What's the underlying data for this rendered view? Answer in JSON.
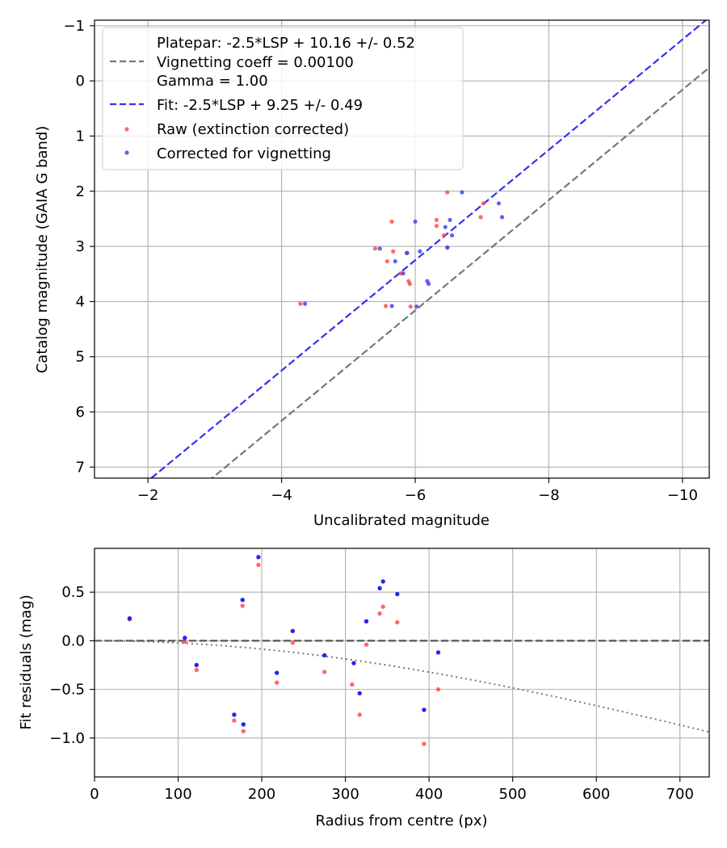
{
  "chart_data": [
    {
      "type": "scatter",
      "xlabel": "Uncalibrated magnitude",
      "ylabel": "Catalog magnitude (GAIA G band)",
      "xlim": [
        -1.2,
        -10.4
      ],
      "ylim": [
        7.2,
        -1.1
      ],
      "x_inverted": true,
      "y_inverted": true,
      "x_ticks": [
        -2,
        -4,
        -6,
        -8,
        -10
      ],
      "x_tick_labels": [
        "−2",
        "−4",
        "−6",
        "−8",
        "−10"
      ],
      "y_ticks": [
        -1,
        0,
        1,
        2,
        3,
        4,
        5,
        6,
        7
      ],
      "y_tick_labels": [
        "−1",
        "0",
        "1",
        "2",
        "3",
        "4",
        "5",
        "6",
        "7"
      ],
      "grid": true,
      "legend_position": "top-left",
      "legend": {
        "platepar": [
          "Platepar: -2.5*LSP + 10.16 +/- 0.52",
          "Vignetting coeff = 0.00100",
          "Gamma = 1.00"
        ],
        "fit": "Fit: -2.5*LSP + 9.25 +/- 0.49",
        "raw": "Raw (extinction corrected)",
        "corrected": "Corrected for vignetting"
      },
      "colors": {
        "platepar": "#777777",
        "fit": "#3333ee",
        "raw": "#ff4444",
        "corrected": "#3b3bf0"
      },
      "lines": [
        {
          "name": "platepar",
          "slope": 1,
          "intercept": 10.16,
          "style": "dashed"
        },
        {
          "name": "fit",
          "slope": 1,
          "intercept": 9.25,
          "style": "dashed"
        }
      ],
      "series": [
        {
          "name": "Raw (extinction corrected)",
          "x": [
            -6.48,
            -7.02,
            -6.98,
            -5.65,
            -6.32,
            -6.32,
            -6.43,
            -6.48,
            -5.4,
            -5.67,
            -5.58,
            -5.87,
            -5.9,
            -5.92,
            -5.78,
            -5.93,
            -5.56,
            -4.28
          ],
          "y": [
            2.02,
            2.22,
            2.47,
            2.55,
            2.52,
            2.63,
            2.8,
            3.02,
            3.04,
            3.09,
            3.27,
            3.12,
            3.63,
            3.68,
            3.49,
            4.09,
            4.08,
            4.04
          ]
        },
        {
          "name": "Corrected for vignetting",
          "x": [
            -6.7,
            -7.25,
            -7.3,
            -6.0,
            -6.52,
            -6.45,
            -6.55,
            -6.48,
            -5.47,
            -5.7,
            -5.88,
            -6.07,
            -6.18,
            -6.2,
            -5.82,
            -6.02,
            -5.65,
            -4.35
          ],
          "y": [
            2.02,
            2.22,
            2.47,
            2.55,
            2.52,
            2.65,
            2.8,
            3.02,
            3.04,
            3.27,
            3.12,
            3.09,
            3.63,
            3.68,
            3.49,
            4.09,
            4.08,
            4.04
          ]
        }
      ]
    },
    {
      "type": "scatter",
      "xlabel": "Radius from centre (px)",
      "ylabel": "Fit residuals (mag)",
      "xlim": [
        0,
        735
      ],
      "ylim": [
        -1.4,
        0.95
      ],
      "x_ticks": [
        0,
        100,
        200,
        300,
        400,
        500,
        600,
        700
      ],
      "x_tick_labels": [
        "0",
        "100",
        "200",
        "300",
        "400",
        "500",
        "600",
        "700"
      ],
      "y_ticks": [
        0.5,
        0.0,
        -0.5,
        -1.0
      ],
      "y_tick_labels": [
        "0.5",
        "0.0",
        "−0.5",
        "−1.0"
      ],
      "grid": true,
      "reference_lines": [
        {
          "name": "zero",
          "y": 0.0,
          "style": "dashed"
        },
        {
          "name": "vignetting",
          "coeff": 0.001,
          "style": "dotted"
        }
      ],
      "series": [
        {
          "name": "raw",
          "x": [
            42,
            108,
            122,
            167,
            177,
            178,
            196,
            218,
            237,
            275,
            308,
            317,
            325,
            341,
            345,
            362,
            394,
            411
          ],
          "y": [
            0.22,
            -0.01,
            -0.3,
            -0.82,
            0.36,
            -0.93,
            0.78,
            -0.43,
            -0.02,
            -0.32,
            -0.45,
            -0.76,
            -0.04,
            0.28,
            0.35,
            0.19,
            -1.06,
            -0.5
          ]
        },
        {
          "name": "corrected",
          "x": [
            42,
            108,
            122,
            167,
            177,
            178,
            196,
            218,
            237,
            275,
            310,
            317,
            325,
            341,
            345,
            362,
            394,
            411
          ],
          "y": [
            0.23,
            0.03,
            -0.25,
            -0.76,
            0.42,
            -0.86,
            0.86,
            -0.33,
            0.1,
            -0.15,
            -0.23,
            -0.54,
            0.2,
            0.54,
            0.61,
            0.48,
            -0.71,
            -0.12
          ]
        }
      ]
    }
  ]
}
